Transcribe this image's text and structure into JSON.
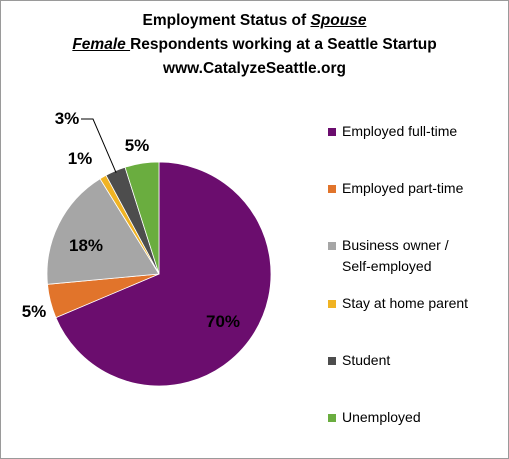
{
  "title": {
    "line1_prefix": "Employment Status of ",
    "line1_emph": "Spouse",
    "line2_emph": "Female ",
    "line2_rest": "Respondents working at a Seattle Startup",
    "line3": "www.CatalyzeSeattle.org"
  },
  "chart_data": {
    "type": "pie",
    "categories": [
      "Employed full-time",
      "Employed part-time",
      "Business owner / Self-employed",
      "Stay at home parent",
      "Student",
      "Unemployed"
    ],
    "values": [
      70,
      5,
      18,
      1,
      3,
      5
    ],
    "labels": [
      "70%",
      "5%",
      "18%",
      "1%",
      "3%",
      "5%"
    ],
    "colors": [
      "#6b0d6e",
      "#e1742b",
      "#a6a6a6",
      "#f0b323",
      "#4d4d4d",
      "#6aad3f"
    ],
    "start_angle_deg": 0,
    "direction": "clockwise",
    "legend_position": "right",
    "legend_lines": [
      [
        "Employed full-time"
      ],
      [
        "Employed part-time"
      ],
      [
        "Business owner /",
        "Self-employed"
      ],
      [
        "Stay at home parent"
      ],
      [
        "Student"
      ],
      [
        "Unemployed"
      ]
    ]
  }
}
